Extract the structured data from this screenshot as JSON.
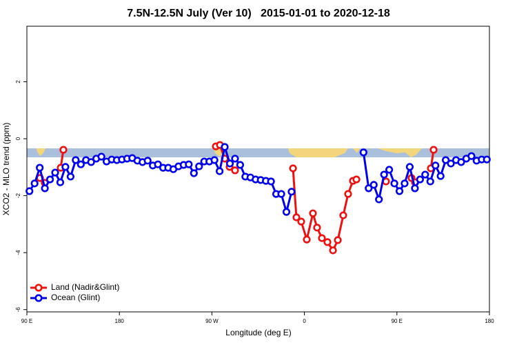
{
  "chart_data": {
    "type": "line",
    "title": "7.5N-12.5N July (Ver 10)   2015-01-01 to 2020-12-18",
    "x_label": "Longitude (deg E)",
    "y_label": "XCO2 - MLO trend (ppm)",
    "xlim": [
      90,
      540
    ],
    "ylim": [
      -6.08,
      3.95
    ],
    "xticks": [
      {
        "value": 90,
        "label": "90 E"
      },
      180,
      {
        "value": 270,
        "label": "90 W"
      },
      {
        "value": 360,
        "label": "0"
      },
      {
        "value": 450,
        "label": "90 E"
      },
      {
        "value": 540,
        "label": "180"
      }
    ],
    "yticks": [
      -6,
      -4,
      -2,
      0,
      2
    ],
    "legend": "bottomleft",
    "series": [
      {
        "name": "Land (Nadir&Glint)",
        "color": "#ee1111",
        "x": [
          102.7,
          107.4,
          null,
          122.9,
          125.5,
          null,
          273.8,
          277.8,
          282.5,
          287.2,
          292.5,
          null,
          348.9,
          352.2,
          356.9,
          362.3,
          368.3,
          372.3,
          377.0,
          382.4,
          387.8,
          392.5,
          397.8,
          402.5,
          407.2,
          410.6,
          null,
          439.4,
          null,
          464.2,
          467.6,
          null,
          483.0,
          485.7
        ],
        "values": [
          -1.38,
          -1.55,
          null,
          -1.02,
          -0.39,
          null,
          -0.27,
          -0.22,
          -0.7,
          -0.99,
          -1.11,
          null,
          -1.04,
          -2.76,
          -2.91,
          -3.54,
          -2.62,
          -3.12,
          -3.49,
          -3.63,
          -3.92,
          -3.56,
          -2.69,
          -1.94,
          -1.48,
          -1.43,
          null,
          -1.5,
          null,
          -1.38,
          -1.53,
          null,
          -1.04,
          -0.39
        ]
      },
      {
        "name": "Ocean (Glint)",
        "color": "#0000ee",
        "x": [
          92.5,
          97.5,
          102.5,
          107.5,
          112.5,
          117.5,
          122.5,
          127.5,
          132.5,
          137.5,
          142.5,
          147.5,
          152.5,
          157.5,
          162.5,
          167.5,
          172.5,
          177.5,
          182.5,
          187.5,
          192.5,
          197.5,
          202.5,
          207.5,
          212.5,
          217.5,
          222.5,
          227.5,
          232.5,
          237.5,
          242.5,
          247.5,
          252.5,
          257.5,
          262.5,
          267.5,
          272.5,
          277.5,
          282.5,
          287.5,
          292.5,
          297.5,
          302.5,
          307.5,
          312.5,
          317.5,
          322.5,
          327.5,
          332.5,
          337.5,
          342.5,
          347.5,
          null,
          417.5,
          422.5,
          427.5,
          432.5,
          437.5,
          442.5,
          447.5,
          452.5,
          457.5,
          462.5,
          467.5,
          472.5,
          477.5,
          482.5,
          487.5,
          492.5,
          497.5,
          502.5,
          507.5,
          512.5,
          517.5,
          522.5,
          527.5,
          532.5,
          537.5
        ],
        "values": [
          -1.84,
          -1.57,
          -1.02,
          -1.74,
          -1.43,
          -1.19,
          -1.53,
          -0.99,
          -1.33,
          -0.75,
          -0.9,
          -0.75,
          -0.82,
          -0.7,
          -0.63,
          -0.8,
          -0.73,
          -0.75,
          -0.73,
          -0.7,
          -0.68,
          -0.77,
          -0.82,
          -0.77,
          -0.94,
          -0.9,
          -1.02,
          -1.02,
          -1.07,
          -0.97,
          -0.92,
          -0.9,
          -1.21,
          -0.97,
          -0.8,
          -0.8,
          -0.75,
          -1.14,
          -0.29,
          -0.87,
          -0.7,
          -0.92,
          -1.33,
          -1.36,
          -1.43,
          -1.45,
          -1.48,
          -1.5,
          -1.94,
          -1.94,
          -2.57,
          -1.86,
          null,
          -0.48,
          -1.74,
          -1.62,
          -2.13,
          -1.26,
          -1.09,
          -1.57,
          -1.84,
          -1.57,
          -0.99,
          -1.74,
          -1.43,
          -1.26,
          -1.5,
          -0.94,
          -1.31,
          -0.75,
          -0.87,
          -0.75,
          -0.82,
          -0.7,
          -0.61,
          -0.77,
          -0.73,
          -0.73
        ]
      }
    ]
  }
}
